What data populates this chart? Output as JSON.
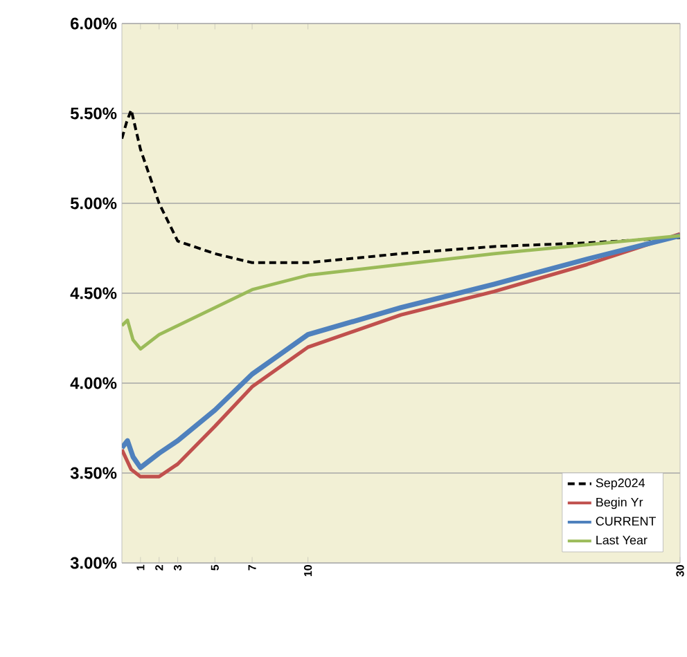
{
  "chart_data": {
    "type": "line",
    "xlim": [
      0,
      30
    ],
    "xticks": [
      1,
      2,
      3,
      5,
      7,
      10,
      30
    ],
    "ylim": [
      3,
      6
    ],
    "yticks": [
      {
        "value": 3,
        "label": "3.00%"
      },
      {
        "value": 3.5,
        "label": "3.50%"
      },
      {
        "value": 4,
        "label": "4.00%"
      },
      {
        "value": 4.5,
        "label": "4.50%"
      },
      {
        "value": 5,
        "label": "5.00%"
      },
      {
        "value": 5.5,
        "label": "5.50%"
      },
      {
        "value": 6,
        "label": "6.00%"
      }
    ],
    "grid": "y",
    "legend": "bottom right",
    "marker": "none",
    "series": [
      {
        "name": "Sep2024",
        "color": "#000000",
        "line_style": "dashed",
        "x": [
          0,
          0.25,
          0.5,
          1,
          2,
          3,
          5,
          7,
          10,
          15,
          20,
          25,
          30
        ],
        "values": [
          5.36,
          5.45,
          5.52,
          5.3,
          5.0,
          4.79,
          4.72,
          4.67,
          4.67,
          4.72,
          4.76,
          4.78,
          4.81
        ]
      },
      {
        "name": "Begin Yr",
        "color": "#c0504d",
        "line_style": "solid",
        "x": [
          0,
          0.5,
          1,
          2,
          3,
          5,
          7,
          10,
          15,
          20,
          25,
          30
        ],
        "values": [
          3.63,
          3.52,
          3.48,
          3.48,
          3.55,
          3.76,
          3.98,
          4.2,
          4.38,
          4.51,
          4.66,
          4.83
        ]
      },
      {
        "name": "CURRENT",
        "color": "#4f81bd",
        "line_style": "solid",
        "x": [
          0,
          0.3,
          0.6,
          1,
          2,
          3,
          5,
          7,
          10,
          15,
          20,
          25,
          30
        ],
        "values": [
          3.64,
          3.68,
          3.59,
          3.53,
          3.61,
          3.68,
          3.85,
          4.05,
          4.27,
          4.42,
          4.55,
          4.69,
          4.82
        ]
      },
      {
        "name": "Last Year",
        "color": "#9bbb59",
        "line_style": "solid",
        "x": [
          0,
          0.3,
          0.6,
          1,
          2,
          3,
          5,
          7,
          10,
          15,
          20,
          25,
          30
        ],
        "values": [
          4.32,
          4.35,
          4.24,
          4.19,
          4.27,
          4.32,
          4.42,
          4.52,
          4.6,
          4.66,
          4.72,
          4.77,
          4.82
        ]
      }
    ]
  }
}
